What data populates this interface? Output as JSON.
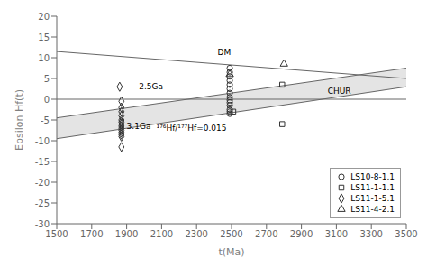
{
  "chart_data": {
    "type": "scatter",
    "xlabel": "t(Ma)",
    "ylabel": "Epsilon Hf(t)",
    "xlim": [
      1500,
      3500
    ],
    "ylim": [
      -30,
      20
    ],
    "xticks": [
      1500,
      1700,
      1900,
      2100,
      2300,
      2500,
      2700,
      2900,
      3100,
      3300,
      3500
    ],
    "yticks": [
      -30,
      -25,
      -20,
      -15,
      -10,
      -5,
      0,
      5,
      10,
      15,
      20
    ],
    "grid": false,
    "legend": "lower right",
    "band": {
      "x": [
        1500,
        3500
      ],
      "lower": [
        -9.5,
        3.0
      ],
      "upper": [
        -4.5,
        7.5
      ],
      "color": "#d8d8d8"
    },
    "lines": [
      {
        "x": [
          1500,
          3500
        ],
        "values": [
          -4.5,
          7.5
        ],
        "color": "#666666"
      },
      {
        "x": [
          1500,
          3500
        ],
        "values": [
          -9.5,
          3.0
        ],
        "color": "#666666"
      },
      {
        "x": [
          1500,
          3500
        ],
        "values": [
          0,
          0
        ],
        "color": "#666666"
      },
      {
        "x": [
          1500,
          3500
        ],
        "values": [
          11.5,
          5.0
        ],
        "color": "#666666"
      }
    ],
    "series": [
      {
        "name": "LS10-8-1.1",
        "marker": "circle",
        "color": "#333333",
        "x": [
          2490,
          2490,
          2490,
          2490,
          2490,
          2490,
          2490,
          2490,
          2490,
          2490,
          2490,
          2490,
          2490,
          2490
        ],
        "values": [
          7.5,
          6.5,
          5.5,
          4.5,
          3.5,
          2.5,
          1.5,
          0.5,
          -0.2,
          -0.8,
          -1.5,
          -2.5,
          -3.0,
          -3.5
        ]
      },
      {
        "name": "LS11-1-1.1",
        "marker": "square",
        "color": "#333333",
        "x": [
          2790,
          2790,
          2510
        ],
        "values": [
          3.5,
          -6.0,
          -3.0
        ]
      },
      {
        "name": "LS11-1-5.1",
        "marker": "diamond",
        "color": "#333333",
        "x": [
          1860,
          1870,
          1870,
          1870,
          1870,
          1870,
          1870,
          1870,
          1870,
          1870,
          1870,
          1870,
          1870,
          1870,
          1870
        ],
        "values": [
          3.0,
          -0.5,
          -2.0,
          -3.0,
          -4.0,
          -5.0,
          -5.5,
          -6.0,
          -6.5,
          -7.0,
          -7.5,
          -8.0,
          -8.5,
          -9.0,
          -11.5
        ]
      },
      {
        "name": "LS11-4-2.1",
        "marker": "triangle",
        "color": "#333333",
        "x": [
          2800,
          2490
        ],
        "values": [
          8.5,
          6.0
        ]
      }
    ],
    "annotations": [
      {
        "text": "DM",
        "x": 2420,
        "y": 10.2
      },
      {
        "text": "CHUR",
        "x": 3050,
        "y": 0.8
      },
      {
        "text": "2.5Ga",
        "x": 1970,
        "y": 2.0
      },
      {
        "text": "3.1Ga",
        "x": 1900,
        "y": -7.5
      },
      {
        "text": "¹⁷⁶Hf/¹⁷⁷Hf=0.015",
        "x": 2070,
        "y": -8.0
      }
    ]
  }
}
